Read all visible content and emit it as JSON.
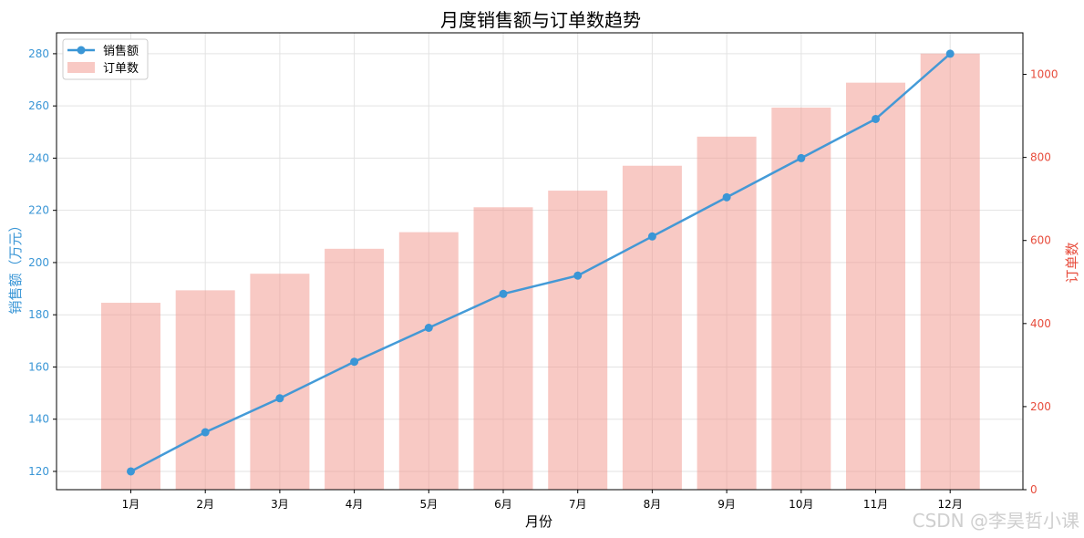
{
  "chart_data": {
    "type": "bar+line",
    "title": "月度销售额与订单数趋势",
    "xlabel": "月份",
    "ylabel_left": "销售额（万元）",
    "ylabel_right": "订单数",
    "categories": [
      "1月",
      "2月",
      "3月",
      "4月",
      "5月",
      "6月",
      "7月",
      "8月",
      "9月",
      "10月",
      "11月",
      "12月"
    ],
    "series": [
      {
        "name": "销售额",
        "type": "line",
        "axis": "left",
        "color": "#3a96d6",
        "values": [
          120,
          135,
          148,
          162,
          175,
          188,
          195,
          210,
          225,
          240,
          255,
          280
        ]
      },
      {
        "name": "订单数",
        "type": "bar",
        "axis": "right",
        "color": "#f1948a",
        "values": [
          450,
          480,
          520,
          580,
          620,
          680,
          720,
          780,
          850,
          920,
          980,
          1050
        ]
      }
    ],
    "ylim_left": [
      113,
      288
    ],
    "yticks_left": [
      120,
      140,
      160,
      180,
      200,
      220,
      240,
      260,
      280
    ],
    "ylim_right": [
      0,
      1100
    ],
    "yticks_right": [
      0,
      200,
      400,
      600,
      800,
      1000
    ],
    "grid": true,
    "legend_position": "top-left"
  },
  "watermark": "CSDN @李昊哲小课"
}
